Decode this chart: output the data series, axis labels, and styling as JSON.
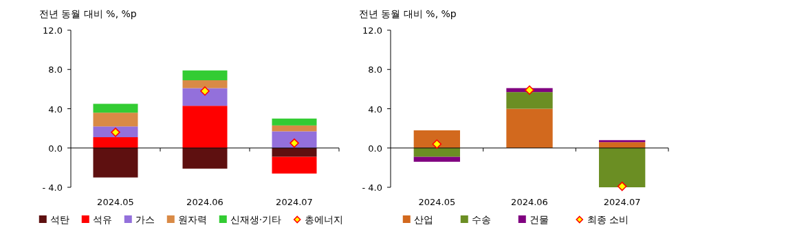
{
  "chart_data": [
    {
      "type": "bar",
      "stacked": true,
      "ylabel": "전년 동월 대비 %, %p",
      "categories": [
        "2024.05",
        "2024.06",
        "2024.07"
      ],
      "ylim": [
        -4,
        12
      ],
      "yticks": [
        {
          "value": -4,
          "label": "- 4.0"
        },
        {
          "value": 0,
          "label": "0.0"
        },
        {
          "value": 4,
          "label": "4.0"
        },
        {
          "value": 8,
          "label": "8.0"
        },
        {
          "value": 12,
          "label": "12.0"
        }
      ],
      "legend": "bottom",
      "marker": "diamond",
      "series": [
        {
          "name": "석탄",
          "color": "#5e1010",
          "values": [
            -3.0,
            -2.1,
            -0.9
          ]
        },
        {
          "name": "석유",
          "color": "#ff0000",
          "values": [
            1.1,
            4.3,
            -1.7
          ]
        },
        {
          "name": "가스",
          "color": "#9370db",
          "values": [
            1.1,
            1.8,
            1.7
          ]
        },
        {
          "name": "원자력",
          "color": "#d98a46",
          "values": [
            1.4,
            0.8,
            0.6
          ]
        },
        {
          "name": "신재생·기타",
          "color": "#33cc33",
          "values": [
            0.9,
            1.0,
            0.7
          ]
        },
        {
          "name": "총에너지",
          "type": "scatter",
          "color": "#ff0000",
          "values": [
            1.6,
            5.8,
            0.5
          ]
        }
      ]
    },
    {
      "type": "bar",
      "stacked": true,
      "ylabel": "전년 동월 대비 %, %p",
      "categories": [
        "2024.05",
        "2024.06",
        "2024.07"
      ],
      "ylim": [
        -4,
        12
      ],
      "yticks": [
        {
          "value": -4,
          "label": "- 4.0"
        },
        {
          "value": 0,
          "label": "0.0"
        },
        {
          "value": 4,
          "label": "4.0"
        },
        {
          "value": 8,
          "label": "8.0"
        },
        {
          "value": 12,
          "label": "12.0"
        }
      ],
      "legend": "bottom",
      "marker": "diamond",
      "series": [
        {
          "name": "산업",
          "color": "#d2691e",
          "values": [
            1.8,
            4.0,
            0.6
          ]
        },
        {
          "name": "수송",
          "color": "#6b8e23",
          "values": [
            -0.9,
            1.7,
            -4.0
          ]
        },
        {
          "name": "건물",
          "color": "#800080",
          "values": [
            -0.5,
            0.4,
            0.2
          ]
        },
        {
          "name": "최종 소비",
          "type": "scatter",
          "color": "#ff0000",
          "values": [
            0.4,
            5.9,
            -3.9
          ]
        }
      ]
    }
  ]
}
